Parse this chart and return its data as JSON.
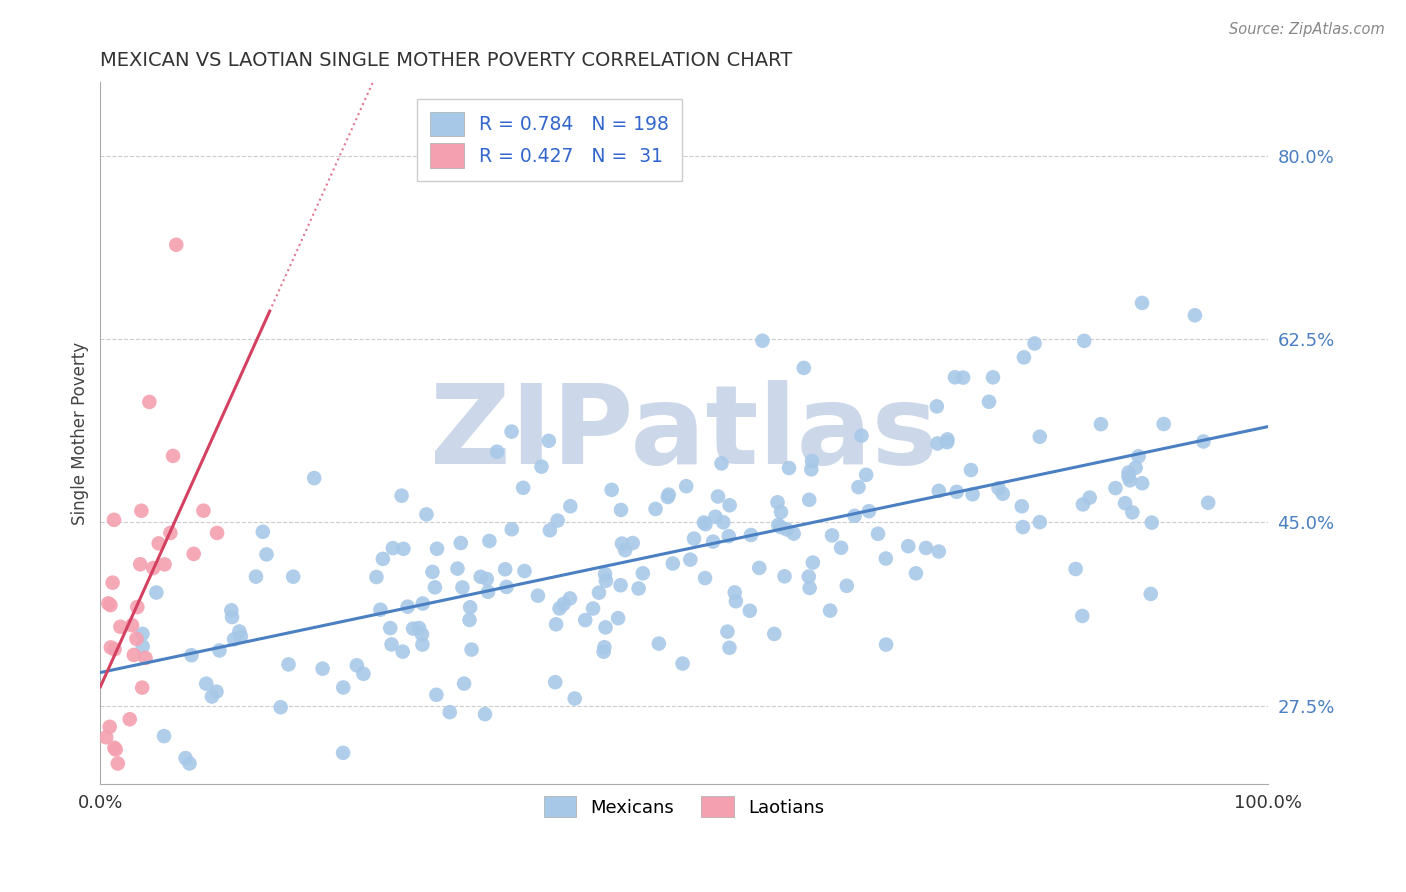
{
  "title": "MEXICAN VS LAOTIAN SINGLE MOTHER POVERTY CORRELATION CHART",
  "source": "Source: ZipAtlas.com",
  "ylabel": "Single Mother Poverty",
  "xlim": [
    0.0,
    1.0
  ],
  "ylim": [
    0.2,
    0.87
  ],
  "yticks": [
    0.275,
    0.45,
    0.625,
    0.8
  ],
  "ytick_labels": [
    "27.5%",
    "45.0%",
    "62.5%",
    "80.0%"
  ],
  "xticks": [
    0.0,
    1.0
  ],
  "xtick_labels": [
    "0.0%",
    "100.0%"
  ],
  "mexican_R": 0.784,
  "mexican_N": 198,
  "laotian_R": 0.427,
  "laotian_N": 31,
  "mexican_color": "#a8c8e8",
  "laotian_color": "#f4a0b0",
  "mexican_line_color": "#4a7fc1",
  "laotian_line_color": "#d44060",
  "grid_color": "#cccccc",
  "grid_style": "--",
  "title_color": "#333333",
  "title_fontsize": 15,
  "watermark": "ZIPatlas",
  "watermark_color": "#ccd8ea",
  "legend_color": "#3366cc",
  "background_color": "#ffffff"
}
